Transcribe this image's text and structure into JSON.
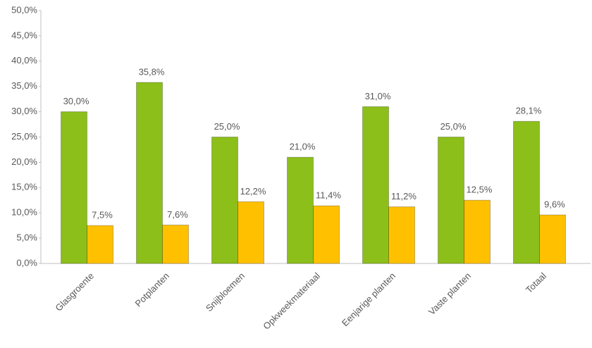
{
  "chart_data": {
    "type": "bar",
    "categories": [
      "Glasgroente",
      "Potplanten",
      "Snijbloemen",
      "Opkweekmateriaal",
      "Eenjarige planten",
      "Vaste planten",
      "Totaal"
    ],
    "series": [
      {
        "color": "#8cbf1a",
        "values": [
          30.0,
          35.8,
          25.0,
          21.0,
          31.0,
          25.0,
          28.1
        ],
        "value_labels": [
          "30,0%",
          "35,8%",
          "25,0%",
          "21,0%",
          "31,0%",
          "25,0%",
          "28,1%"
        ]
      },
      {
        "color": "#ffc000",
        "values": [
          7.5,
          7.6,
          12.2,
          11.4,
          11.2,
          12.5,
          9.6
        ],
        "value_labels": [
          "7,5%",
          "7,6%",
          "12,2%",
          "11,4%",
          "11,2%",
          "12,5%",
          "9,6%"
        ]
      }
    ],
    "ylim": [
      0,
      50
    ],
    "yticks": [
      {
        "value": 0,
        "label": "0,0%"
      },
      {
        "value": 5,
        "label": "5,0%"
      },
      {
        "value": 10,
        "label": "10,0%"
      },
      {
        "value": 15,
        "label": "15,0%"
      },
      {
        "value": 20,
        "label": "20,0%"
      },
      {
        "value": 25,
        "label": "25,0%"
      },
      {
        "value": 30,
        "label": "30,0%"
      },
      {
        "value": 35,
        "label": "35,0%"
      },
      {
        "value": 40,
        "label": "40,0%"
      },
      {
        "value": 45,
        "label": "45,0%"
      },
      {
        "value": 50,
        "label": "50,0%"
      }
    ],
    "grid": false
  }
}
